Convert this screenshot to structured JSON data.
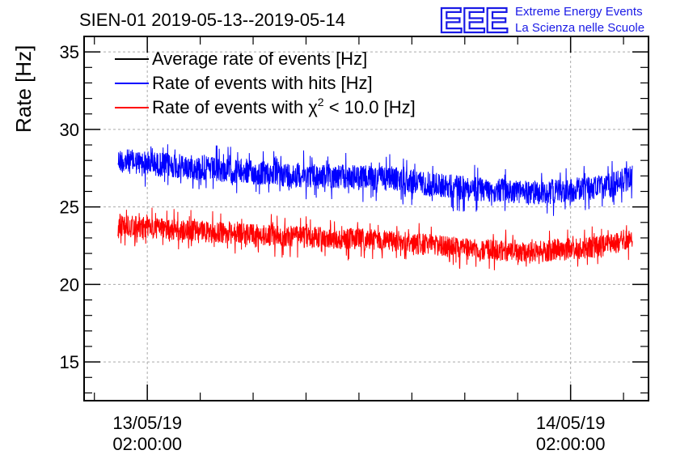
{
  "header": {
    "title": "SIEN-01 2019-05-13--2019-05-14",
    "logo": {
      "mark": "EEE",
      "line1": "Extreme Energy Events",
      "line2": "La Scienza nelle Scuole",
      "color": "#1a1ae6"
    }
  },
  "chart_data": {
    "type": "line",
    "title": "SIEN-01 2019-05-13--2019-05-14",
    "ylabel": "Rate [Hz]",
    "xlabel": "",
    "ylim": [
      12.5,
      36
    ],
    "y_ticks": [
      15,
      20,
      25,
      30,
      35
    ],
    "y_tick_labels": [
      "15",
      "20",
      "25",
      "30",
      "35"
    ],
    "xlim": [
      "2019-05-12T22:25",
      "2019-05-14T06:25"
    ],
    "x_ticks": [
      "2019-05-13T02:00",
      "2019-05-14T02:00"
    ],
    "x_tick_labels": [
      {
        "date": "13/05/19",
        "time": "02:00:00"
      },
      {
        "date": "14/05/19",
        "time": "02:00:00"
      }
    ],
    "grid": true,
    "legend_position": "top-left",
    "x_range_data": [
      "2019-05-13T00:20",
      "2019-05-14T05:30"
    ],
    "series": [
      {
        "name": "Average rate of events [Hz]",
        "color": "#000000",
        "x": [],
        "values": []
      },
      {
        "name": "Rate of events with hits [Hz]",
        "color": "#0000ff",
        "noise_amplitude": 0.8,
        "x": [
          "2019-05-13T00:20",
          "2019-05-13T04:00",
          "2019-05-13T08:00",
          "2019-05-13T12:00",
          "2019-05-13T16:00",
          "2019-05-13T20:00",
          "2019-05-14T00:00",
          "2019-05-14T04:00",
          "2019-05-14T05:30"
        ],
        "values": [
          28.0,
          27.6,
          27.2,
          27.0,
          26.8,
          26.2,
          25.9,
          26.3,
          26.9
        ]
      },
      {
        "name": "Rate of events with χ² < 10.0 [Hz]",
        "name_parts": {
          "pre": "Rate of events with ",
          "sym": "χ",
          "sup": "2",
          "post": " < 10.0 [Hz]"
        },
        "color": "#ff0000",
        "noise_amplitude": 0.7,
        "x": [
          "2019-05-13T00:20",
          "2019-05-13T04:00",
          "2019-05-13T08:00",
          "2019-05-13T12:00",
          "2019-05-13T16:00",
          "2019-05-13T20:00",
          "2019-05-14T00:00",
          "2019-05-14T04:00",
          "2019-05-14T05:30"
        ],
        "values": [
          23.8,
          23.5,
          23.2,
          23.0,
          22.8,
          22.3,
          22.1,
          22.5,
          23.0
        ]
      }
    ]
  }
}
